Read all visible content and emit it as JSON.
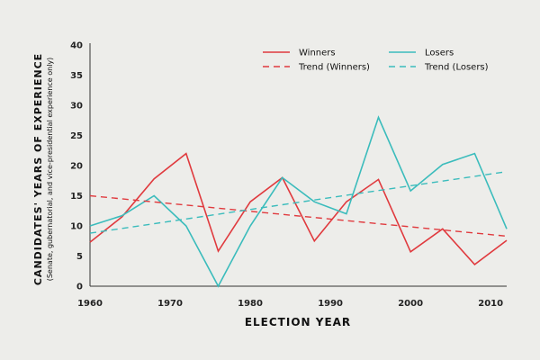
{
  "chart_data": {
    "type": "line",
    "title": "",
    "xlabel": "ELECTION YEAR",
    "ylabel": "CANDIDATES' YEARS OF EXPERIENCE",
    "ylabel_sub": "(Senate, gubernatorial, and vice-presidential experience only)",
    "xlim": [
      1960,
      2012
    ],
    "ylim": [
      0,
      40
    ],
    "x_ticks": [
      1960,
      1970,
      1980,
      1990,
      2000,
      2010
    ],
    "y_ticks": [
      0,
      5,
      10,
      15,
      20,
      25,
      30,
      35,
      40
    ],
    "grid": false,
    "legend_position": "top-right",
    "colors": {
      "winners": "#e03a3e",
      "losers": "#3bbcbc"
    },
    "x": [
      1960,
      1964,
      1968,
      1972,
      1976,
      1980,
      1984,
      1988,
      1992,
      1996,
      2000,
      2004,
      2008,
      2012
    ],
    "series": [
      {
        "name": "Winners",
        "style": "solid",
        "color": "#e03a3e",
        "values": [
          7.3,
          11.5,
          17.8,
          22,
          5.8,
          14,
          18,
          7.5,
          14,
          17.7,
          5.7,
          9.5,
          3.6,
          7.6
        ]
      },
      {
        "name": "Losers",
        "style": "solid",
        "color": "#3bbcbc",
        "values": [
          10,
          11.7,
          15,
          10,
          0,
          10,
          18,
          14,
          12,
          28,
          15.8,
          20.2,
          22,
          9.5
        ]
      },
      {
        "name": "Trend (Winners)",
        "style": "dashed",
        "color": "#e03a3e",
        "values_start_end": [
          15,
          8.3
        ]
      },
      {
        "name": "Trend (Losers)",
        "style": "dashed",
        "color": "#3bbcbc",
        "values_start_end": [
          8.8,
          19
        ]
      }
    ]
  }
}
